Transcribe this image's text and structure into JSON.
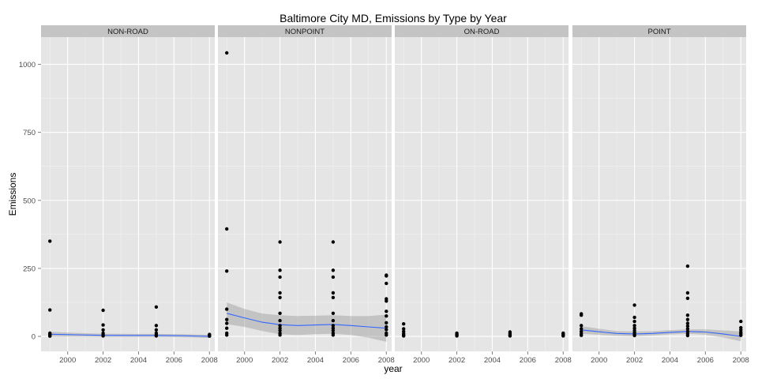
{
  "chart_data": {
    "type": "scatter",
    "title": "Baltimore City MD, Emissions by Type by Year",
    "xlabel": "year",
    "ylabel": "Emissions",
    "xlim": [
      1998.5,
      2008.3
    ],
    "ylim": [
      -55,
      1100
    ],
    "x_ticks": [
      2000,
      2002,
      2004,
      2006,
      2008
    ],
    "y_ticks": [
      0,
      250,
      500,
      750,
      1000
    ],
    "grid": true,
    "smoother": true,
    "colors": {
      "panel_bg": "#e5e5e5",
      "strip_bg": "#c4c4c4",
      "grid_major": "#ffffff",
      "grid_minor": "#f2f2f2",
      "points": "#000000",
      "smooth_line": "#3366ff",
      "ribbon": "#999999"
    },
    "facets": [
      {
        "label": "NON-ROAD",
        "points": [
          {
            "x": 1999,
            "y": 350
          },
          {
            "x": 1999,
            "y": 97
          },
          {
            "x": 1999,
            "y": 12
          },
          {
            "x": 1999,
            "y": 8
          },
          {
            "x": 1999,
            "y": 4
          },
          {
            "x": 1999,
            "y": 1
          },
          {
            "x": 2002,
            "y": 96
          },
          {
            "x": 2002,
            "y": 42
          },
          {
            "x": 2002,
            "y": 24
          },
          {
            "x": 2002,
            "y": 12
          },
          {
            "x": 2002,
            "y": 6
          },
          {
            "x": 2002,
            "y": 2
          },
          {
            "x": 2005,
            "y": 108
          },
          {
            "x": 2005,
            "y": 40
          },
          {
            "x": 2005,
            "y": 24
          },
          {
            "x": 2005,
            "y": 12
          },
          {
            "x": 2005,
            "y": 6
          },
          {
            "x": 2005,
            "y": 2
          },
          {
            "x": 2008,
            "y": 7
          },
          {
            "x": 2008,
            "y": 4
          },
          {
            "x": 2008,
            "y": 2
          },
          {
            "x": 2008,
            "y": 1
          }
        ],
        "smooth": {
          "x": [
            1999,
            2000.5,
            2002,
            2003.5,
            2005,
            2006.5,
            2008
          ],
          "y": [
            8,
            6,
            4,
            3.5,
            3.5,
            2.5,
            0
          ],
          "lower": [
            -1,
            -1,
            -2,
            -2,
            -2,
            -3,
            -6
          ],
          "upper": [
            17,
            13,
            10,
            9,
            9,
            8,
            6
          ]
        }
      },
      {
        "label": "NONPOINT",
        "points": [
          {
            "x": 1999,
            "y": 1042
          },
          {
            "x": 1999,
            "y": 395
          },
          {
            "x": 1999,
            "y": 240
          },
          {
            "x": 1999,
            "y": 100
          },
          {
            "x": 1999,
            "y": 62
          },
          {
            "x": 1999,
            "y": 48
          },
          {
            "x": 1999,
            "y": 30
          },
          {
            "x": 1999,
            "y": 12
          },
          {
            "x": 1999,
            "y": 5
          },
          {
            "x": 2002,
            "y": 347
          },
          {
            "x": 2002,
            "y": 243
          },
          {
            "x": 2002,
            "y": 218
          },
          {
            "x": 2002,
            "y": 160
          },
          {
            "x": 2002,
            "y": 143
          },
          {
            "x": 2002,
            "y": 85
          },
          {
            "x": 2002,
            "y": 58
          },
          {
            "x": 2002,
            "y": 40
          },
          {
            "x": 2002,
            "y": 30
          },
          {
            "x": 2002,
            "y": 22
          },
          {
            "x": 2002,
            "y": 12
          },
          {
            "x": 2002,
            "y": 5
          },
          {
            "x": 2005,
            "y": 347
          },
          {
            "x": 2005,
            "y": 243
          },
          {
            "x": 2005,
            "y": 218
          },
          {
            "x": 2005,
            "y": 160
          },
          {
            "x": 2005,
            "y": 143
          },
          {
            "x": 2005,
            "y": 85
          },
          {
            "x": 2005,
            "y": 58
          },
          {
            "x": 2005,
            "y": 40
          },
          {
            "x": 2005,
            "y": 30
          },
          {
            "x": 2005,
            "y": 22
          },
          {
            "x": 2005,
            "y": 12
          },
          {
            "x": 2005,
            "y": 5
          },
          {
            "x": 2008,
            "y": 225
          },
          {
            "x": 2008,
            "y": 222
          },
          {
            "x": 2008,
            "y": 195
          },
          {
            "x": 2008,
            "y": 138
          },
          {
            "x": 2008,
            "y": 130
          },
          {
            "x": 2008,
            "y": 92
          },
          {
            "x": 2008,
            "y": 75
          },
          {
            "x": 2008,
            "y": 50
          },
          {
            "x": 2008,
            "y": 35
          },
          {
            "x": 2008,
            "y": 25
          },
          {
            "x": 2008,
            "y": 12
          },
          {
            "x": 2008,
            "y": 5
          }
        ],
        "smooth": {
          "x": [
            1999,
            2000,
            2001,
            2002,
            2003,
            2004,
            2005,
            2006,
            2007,
            2008
          ],
          "y": [
            85,
            68,
            52,
            43,
            40,
            42,
            44,
            40,
            35,
            30
          ],
          "lower": [
            45,
            35,
            20,
            8,
            5,
            8,
            10,
            5,
            -5,
            -20
          ],
          "upper": [
            125,
            101,
            84,
            78,
            75,
            76,
            78,
            75,
            75,
            80
          ]
        }
      },
      {
        "label": "ON-ROAD",
        "points": [
          {
            "x": 1999,
            "y": 46
          },
          {
            "x": 1999,
            "y": 28
          },
          {
            "x": 1999,
            "y": 18
          },
          {
            "x": 1999,
            "y": 10
          },
          {
            "x": 1999,
            "y": 5
          },
          {
            "x": 1999,
            "y": 2
          },
          {
            "x": 2002,
            "y": 12
          },
          {
            "x": 2002,
            "y": 8
          },
          {
            "x": 2002,
            "y": 5
          },
          {
            "x": 2002,
            "y": 2
          },
          {
            "x": 2005,
            "y": 16
          },
          {
            "x": 2005,
            "y": 10
          },
          {
            "x": 2005,
            "y": 5
          },
          {
            "x": 2005,
            "y": 2
          },
          {
            "x": 2008,
            "y": 12
          },
          {
            "x": 2008,
            "y": 8
          },
          {
            "x": 2008,
            "y": 4
          },
          {
            "x": 2008,
            "y": 2
          }
        ]
      },
      {
        "label": "POINT",
        "points": [
          {
            "x": 1999,
            "y": 83
          },
          {
            "x": 1999,
            "y": 78
          },
          {
            "x": 1999,
            "y": 40
          },
          {
            "x": 1999,
            "y": 28
          },
          {
            "x": 1999,
            "y": 18
          },
          {
            "x": 1999,
            "y": 10
          },
          {
            "x": 1999,
            "y": 4
          },
          {
            "x": 2002,
            "y": 115
          },
          {
            "x": 2002,
            "y": 70
          },
          {
            "x": 2002,
            "y": 55
          },
          {
            "x": 2002,
            "y": 40
          },
          {
            "x": 2002,
            "y": 30
          },
          {
            "x": 2002,
            "y": 22
          },
          {
            "x": 2002,
            "y": 14
          },
          {
            "x": 2002,
            "y": 8
          },
          {
            "x": 2002,
            "y": 3
          },
          {
            "x": 2005,
            "y": 258
          },
          {
            "x": 2005,
            "y": 160
          },
          {
            "x": 2005,
            "y": 140
          },
          {
            "x": 2005,
            "y": 78
          },
          {
            "x": 2005,
            "y": 62
          },
          {
            "x": 2005,
            "y": 48
          },
          {
            "x": 2005,
            "y": 38
          },
          {
            "x": 2005,
            "y": 28
          },
          {
            "x": 2005,
            "y": 18
          },
          {
            "x": 2005,
            "y": 10
          },
          {
            "x": 2005,
            "y": 3
          },
          {
            "x": 2008,
            "y": 55
          },
          {
            "x": 2008,
            "y": 32
          },
          {
            "x": 2008,
            "y": 24
          },
          {
            "x": 2008,
            "y": 16
          },
          {
            "x": 2008,
            "y": 10
          },
          {
            "x": 2008,
            "y": 4
          }
        ],
        "smooth": {
          "x": [
            1999,
            2000,
            2001,
            2002,
            2003,
            2004,
            2005,
            2006,
            2007,
            2008
          ],
          "y": [
            24,
            17,
            11,
            9,
            11,
            15,
            18,
            16,
            9,
            0
          ],
          "lower": [
            10,
            6,
            2,
            0,
            3,
            7,
            10,
            6,
            -4,
            -18
          ],
          "upper": [
            38,
            28,
            20,
            18,
            19,
            23,
            26,
            26,
            22,
            18
          ]
        }
      }
    ]
  }
}
